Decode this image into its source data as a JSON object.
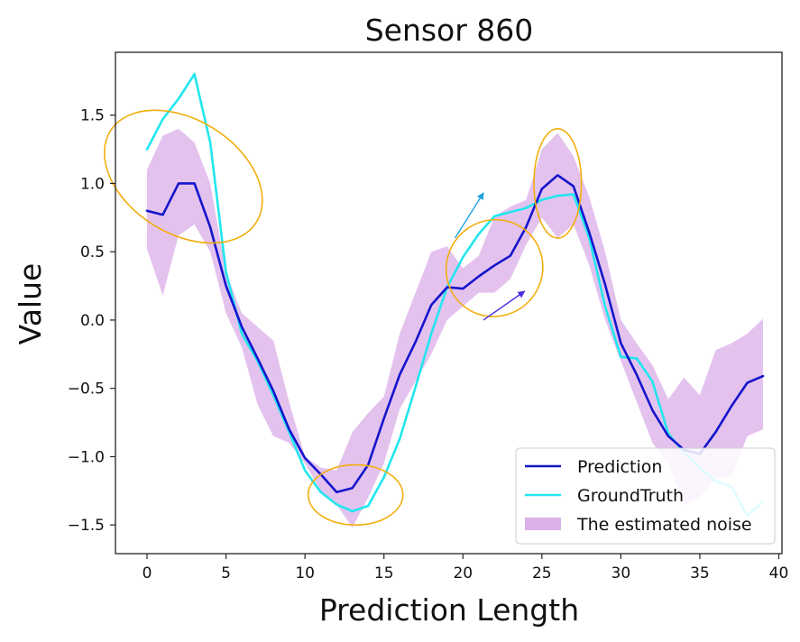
{
  "chart_data": {
    "type": "line",
    "title": "Sensor 860",
    "xlabel": "Prediction Length",
    "ylabel": "Value",
    "xlim": [
      -2,
      40.2
    ],
    "ylim": [
      -1.71,
      1.96
    ],
    "xticks": [
      "0",
      "5",
      "10",
      "15",
      "20",
      "25",
      "30",
      "35",
      "40"
    ],
    "xtick_values": [
      0,
      5,
      10,
      15,
      20,
      25,
      30,
      35,
      40
    ],
    "yticks": [
      "1.5",
      "1.0",
      "0.5",
      "0.0",
      "−0.5",
      "−1.0",
      "−1.5"
    ],
    "ytick_values": [
      1.5,
      1.0,
      0.5,
      0.0,
      -0.5,
      -1.0,
      -1.5
    ],
    "grid": false,
    "legend_position": "lower-right",
    "series": [
      {
        "name": "Prediction",
        "kind": "line",
        "color": "#1515cc",
        "x": [
          0,
          1,
          2,
          3,
          4,
          5,
          6,
          7,
          8,
          9,
          10,
          11,
          12,
          13,
          14,
          15,
          16,
          17,
          18,
          19,
          20,
          21,
          22,
          23,
          24,
          25,
          26,
          27,
          28,
          29,
          30,
          31,
          32,
          33,
          34,
          35,
          36,
          37,
          38,
          39
        ],
        "y": [
          0.8,
          0.77,
          1.0,
          1.0,
          0.68,
          0.25,
          -0.05,
          -0.28,
          -0.52,
          -0.8,
          -1.01,
          -1.13,
          -1.26,
          -1.23,
          -1.06,
          -0.72,
          -0.4,
          -0.16,
          0.11,
          0.24,
          0.23,
          0.32,
          0.4,
          0.47,
          0.68,
          0.96,
          1.06,
          0.98,
          0.64,
          0.26,
          -0.17,
          -0.4,
          -0.66,
          -0.85,
          -0.95,
          -0.98,
          -0.82,
          -0.63,
          -0.46,
          -0.41
        ]
      },
      {
        "name": "GroundTruth",
        "kind": "line",
        "color": "#22e6ee",
        "x": [
          0,
          1,
          2,
          3,
          4,
          5,
          6,
          7,
          8,
          9,
          10,
          11,
          12,
          13,
          14,
          15,
          16,
          17,
          18,
          19,
          20,
          21,
          22,
          23,
          24,
          25,
          26,
          27,
          28,
          29,
          30,
          31,
          32,
          33,
          34,
          35,
          36,
          37,
          38,
          39
        ],
        "y": [
          1.25,
          1.47,
          1.62,
          1.8,
          1.3,
          0.35,
          -0.1,
          -0.3,
          -0.55,
          -0.82,
          -1.1,
          -1.26,
          -1.35,
          -1.4,
          -1.36,
          -1.15,
          -0.87,
          -0.49,
          -0.1,
          0.24,
          0.46,
          0.63,
          0.76,
          0.79,
          0.82,
          0.88,
          0.91,
          0.92,
          0.6,
          0.1,
          -0.27,
          -0.28,
          -0.45,
          -0.83,
          -0.97,
          -1.08,
          -1.18,
          -1.22,
          -1.43,
          -1.33
        ]
      },
      {
        "name": "The estimated noise",
        "kind": "band",
        "color": "#dcb1e9",
        "x": [
          0,
          1,
          2,
          3,
          4,
          5,
          6,
          7,
          8,
          9,
          10,
          11,
          12,
          13,
          14,
          15,
          16,
          17,
          18,
          19,
          20,
          21,
          22,
          23,
          24,
          25,
          26,
          27,
          28,
          29,
          30,
          31,
          32,
          33,
          34,
          35,
          36,
          37,
          38,
          39
        ],
        "upper": [
          1.1,
          1.35,
          1.4,
          1.3,
          1.0,
          0.35,
          0.05,
          -0.05,
          -0.15,
          -0.6,
          -1.0,
          -1.08,
          -1.1,
          -0.82,
          -0.68,
          -0.56,
          -0.1,
          0.2,
          0.5,
          0.54,
          0.38,
          0.47,
          0.76,
          0.83,
          0.88,
          1.25,
          1.37,
          1.2,
          0.9,
          0.5,
          0.0,
          -0.17,
          -0.33,
          -0.58,
          -0.42,
          -0.55,
          -0.22,
          -0.17,
          -0.1,
          0.01
        ],
        "lower": [
          0.52,
          0.18,
          0.62,
          0.7,
          0.5,
          0.05,
          -0.2,
          -0.62,
          -0.85,
          -0.9,
          -1.05,
          -1.25,
          -1.35,
          -1.52,
          -1.3,
          -1.05,
          -0.65,
          -0.45,
          -0.25,
          0.0,
          0.1,
          0.2,
          0.2,
          0.3,
          0.55,
          0.75,
          0.6,
          0.7,
          0.4,
          0.0,
          -0.3,
          -0.6,
          -0.9,
          -1.05,
          -1.35,
          -1.3,
          -1.15,
          -1.15,
          -0.85,
          -0.8
        ]
      }
    ],
    "annotations": [
      {
        "type": "ellipse",
        "color": "#f2ae0e",
        "cx": 2.3,
        "cy": 1.05,
        "rx": 3.6,
        "ry": 0.63,
        "rotate": -58
      },
      {
        "type": "ellipse",
        "color": "#f2ae0e",
        "cx": 22.0,
        "cy": 0.38,
        "rx": 3.1,
        "ry": 0.35,
        "rotate": -48
      },
      {
        "type": "ellipse",
        "color": "#f2ae0e",
        "cx": 26.0,
        "cy": 1.0,
        "rx": 1.5,
        "ry": 0.4,
        "rotate": 0
      },
      {
        "type": "ellipse",
        "color": "#f2ae0e",
        "cx": 13.2,
        "cy": -1.28,
        "rx": 3.0,
        "ry": 0.22,
        "rotate": 0
      },
      {
        "type": "arrow",
        "color": "#1fa2e0",
        "x1": 19.5,
        "y1": 0.6,
        "x2": 21.3,
        "y2": 0.93
      },
      {
        "type": "arrow",
        "color": "#4a2ee0",
        "x1": 21.3,
        "y1": 0.0,
        "x2": 23.9,
        "y2": 0.21
      }
    ]
  }
}
